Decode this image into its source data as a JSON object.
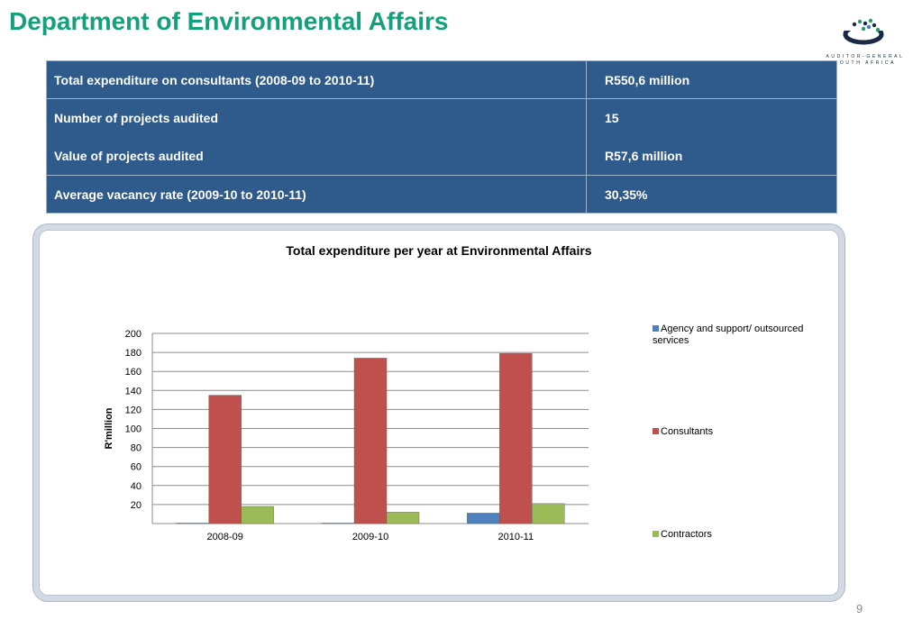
{
  "title": "Department of Environmental Affairs",
  "logo": {
    "line1": "AUDITOR-GENERAL",
    "line2": "SOUTH AFRICA"
  },
  "table": {
    "rows": [
      {
        "label": "Total expenditure on consultants (2008-09 to 2010-11)",
        "value": "R550,6 million"
      },
      {
        "label": "Number of projects audited",
        "value": "15",
        "label2": "Value of projects audited",
        "value2": "R57,6 million"
      },
      {
        "label": "Average vacancy rate (2009-10 to 2010-11)",
        "value": "30,35%"
      }
    ]
  },
  "chart_data": {
    "type": "bar",
    "title": "Total expenditure per year at Environmental Affairs",
    "ylabel": "R'million",
    "xlabel": "",
    "categories": [
      "2008-09",
      "2009-10",
      "2010-11"
    ],
    "series": [
      {
        "name": "Agency and support/ outsourced services",
        "color": "#4f81bd",
        "values": [
          0.5,
          0.5,
          11
        ]
      },
      {
        "name": "Consultants",
        "color": "#c0504d",
        "values": [
          135,
          174,
          179
        ]
      },
      {
        "name": "Contractors",
        "color": "#9bbb59",
        "values": [
          18,
          12,
          21
        ]
      }
    ],
    "yticks": [
      20,
      40,
      60,
      80,
      100,
      120,
      140,
      160,
      180,
      200
    ],
    "ylim": [
      0,
      200
    ],
    "grid": true,
    "legend": "right"
  },
  "page_number": "9"
}
